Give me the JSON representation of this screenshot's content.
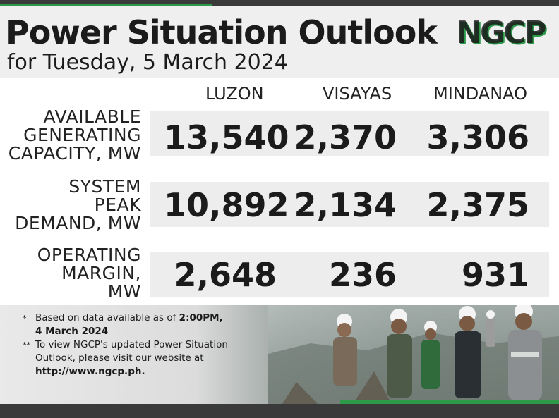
{
  "header": {
    "title": "Power Situation Outlook",
    "subtitle": "for Tuesday, 5 March 2024",
    "logo_text": "NGCP"
  },
  "columns": [
    "LUZON",
    "VISAYAS",
    "MINDANAO"
  ],
  "rows": [
    {
      "label_lines": [
        "AVAILABLE",
        "GENERATING",
        "CAPACITY, MW"
      ],
      "values": [
        "13,540",
        "2,370",
        "3,306"
      ]
    },
    {
      "label_lines": [
        "SYSTEM",
        "PEAK",
        "DEMAND, MW"
      ],
      "values": [
        "10,892",
        "2,134",
        "2,375"
      ]
    },
    {
      "label_lines": [
        "OPERATING",
        "MARGIN,",
        "MW"
      ],
      "values": [
        "2,648",
        "236",
        "931"
      ]
    }
  ],
  "footer": {
    "note1_mark": "*",
    "note1_line1": "Based on data available as of ",
    "note1_line1_bold": "2:00PM,",
    "note1_line2_bold": "4 March 2024",
    "note2_mark": "**",
    "note2_line1": "To view NGCP's updated Power Situation",
    "note2_line2": "Outlook, please visit our website at",
    "note2_line3_bold": "http://www.ngcp.ph."
  },
  "colors": {
    "brand_green": "#2d9a4a",
    "dark_bar": "#3a3a3a",
    "band": "#ededed"
  }
}
